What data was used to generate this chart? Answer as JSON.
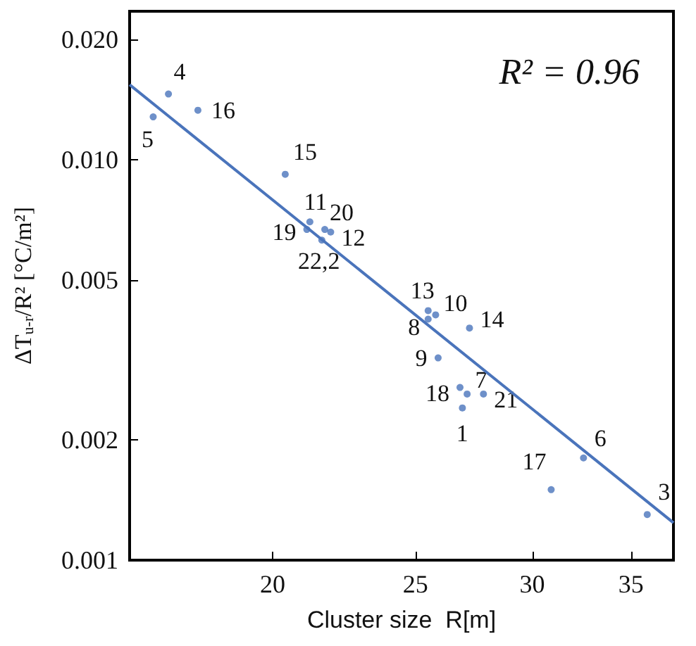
{
  "chart_data": {
    "type": "scatter",
    "xlabel": "Cluster size  R[m]",
    "ylabel": "ΔT$_{u-r}$/R² [°C/m²]",
    "log": "xy",
    "xlim": [
      16,
      37.4
    ],
    "ylim": [
      0.001,
      0.0235
    ],
    "xticks": [
      20,
      25,
      30,
      35
    ],
    "yticks": [
      {
        "value": 0.001,
        "label": "0.001"
      },
      {
        "value": 0.002,
        "label": "0.002"
      },
      {
        "value": 0.005,
        "label": "0.005"
      },
      {
        "value": 0.01,
        "label": "0.010"
      },
      {
        "value": 0.02,
        "label": "0.020"
      }
    ],
    "grid": false,
    "annotations": [
      "R² = 0.96",
      {
        "text": "4",
        "x": 17.0,
        "y": 0.0146
      },
      {
        "text": "5",
        "x": 16.6,
        "y": 0.0128
      },
      {
        "text": "16",
        "x": 17.8,
        "y": 0.0133
      },
      {
        "text": "15",
        "x": 20.4,
        "y": 0.0092
      },
      {
        "text": "11",
        "x": 21.2,
        "y": 0.007
      },
      {
        "text": "19",
        "x": 21.1,
        "y": 0.0067
      },
      {
        "text": "22,2",
        "x": 21.6,
        "y": 0.0063
      },
      {
        "text": "20",
        "x": 21.7,
        "y": 0.0067
      },
      {
        "text": "12",
        "x": 21.9,
        "y": 0.0066
      },
      {
        "text": "13",
        "x": 25.5,
        "y": 0.0042
      },
      {
        "text": "10",
        "x": 25.8,
        "y": 0.0041
      },
      {
        "text": "8",
        "x": 25.5,
        "y": 0.004
      },
      {
        "text": "14",
        "x": 27.2,
        "y": 0.0038
      },
      {
        "text": "9",
        "x": 25.9,
        "y": 0.0032
      },
      {
        "text": "18",
        "x": 26.8,
        "y": 0.0027
      },
      {
        "text": "7",
        "x": 27.1,
        "y": 0.0026
      },
      {
        "text": "21",
        "x": 27.8,
        "y": 0.0026
      },
      {
        "text": "1",
        "x": 26.9,
        "y": 0.0024
      },
      {
        "text": "6",
        "x": 32.5,
        "y": 0.0018
      },
      {
        "text": "17",
        "x": 30.9,
        "y": 0.0015
      },
      {
        "text": "3",
        "x": 35.9,
        "y": 0.0013
      }
    ],
    "series": [
      {
        "color": "#4a74bb",
        "marker": "circle",
        "x": [
          17.0,
          16.6,
          17.8,
          20.4,
          21.2,
          21.1,
          21.6,
          21.7,
          21.9,
          25.5,
          25.8,
          25.5,
          27.2,
          25.9,
          26.8,
          27.1,
          27.8,
          26.9,
          32.5,
          30.9,
          35.9
        ],
        "values": [
          0.0146,
          0.0128,
          0.0133,
          0.0092,
          0.007,
          0.0067,
          0.0063,
          0.0067,
          0.0066,
          0.0042,
          0.0041,
          0.004,
          0.0038,
          0.0032,
          0.0027,
          0.0026,
          0.0026,
          0.0024,
          0.0018,
          0.0015,
          0.0013
        ]
      },
      {
        "type": "line",
        "color": "#4a74bb",
        "marker": "none",
        "x": [
          16,
          37.4
        ],
        "values": [
          0.0154,
          0.00124
        ]
      }
    ]
  }
}
